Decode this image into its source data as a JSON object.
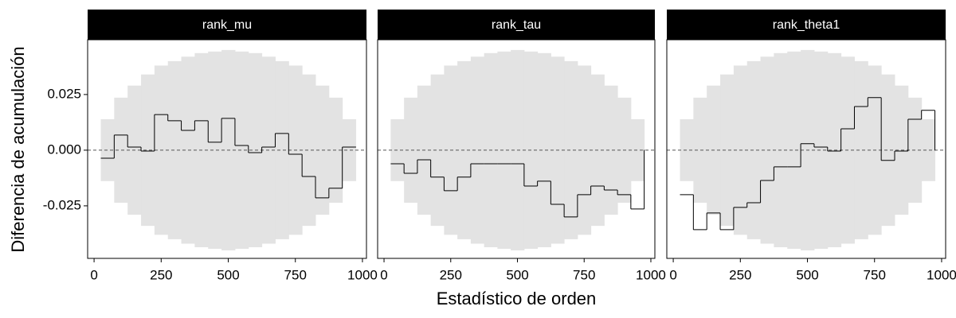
{
  "chart_data": [
    {
      "type": "step",
      "title": "rank_mu",
      "ylabel": "Diferencia de acumulación",
      "x": [
        25,
        75,
        125,
        175,
        225,
        275,
        325,
        375,
        425,
        475,
        525,
        575,
        625,
        675,
        725,
        775,
        825,
        875,
        925,
        975
      ],
      "values": [
        -0.0036,
        0.0068,
        0.0014,
        -0.0004,
        0.016,
        0.0132,
        0.0089,
        0.0132,
        0.0036,
        0.0143,
        0.0021,
        -0.0011,
        0.0014,
        0.0075,
        -0.0018,
        -0.0118,
        -0.0214,
        -0.0171,
        0.0014,
        0.0014
      ],
      "band_upper": [
        0.0139,
        0.0236,
        0.029,
        0.034,
        0.038,
        0.04,
        0.042,
        0.0436,
        0.0443,
        0.045,
        0.0443,
        0.0436,
        0.042,
        0.04,
        0.038,
        0.034,
        0.029,
        0.0236,
        0.0139
      ],
      "band_lower": [
        -0.0139,
        -0.0236,
        -0.029,
        -0.034,
        -0.038,
        -0.04,
        -0.042,
        -0.0436,
        -0.0443,
        -0.045,
        -0.0443,
        -0.0436,
        -0.042,
        -0.04,
        -0.038,
        -0.034,
        -0.029,
        -0.0236,
        -0.0139
      ],
      "hline": 0,
      "color": "#000000",
      "band_color": "#e3e3e3",
      "xlim": [
        -24,
        1015
      ],
      "xticks": [
        0,
        250,
        500,
        750,
        1000
      ],
      "ylim": [
        -0.0486,
        0.0496
      ],
      "yticks": [
        {
          "value": -0.025,
          "label": "-0.025"
        },
        {
          "value": 0,
          "label": "0.000"
        },
        {
          "value": 0.025,
          "label": "0.025"
        }
      ]
    },
    {
      "type": "step",
      "title": "rank_tau",
      "xlabel": "Estadístico de orden",
      "x": [
        25,
        75,
        125,
        175,
        225,
        275,
        325,
        375,
        425,
        475,
        525,
        575,
        625,
        675,
        725,
        775,
        825,
        875,
        925,
        975
      ],
      "values": [
        -0.0061,
        -0.0104,
        -0.0043,
        -0.0121,
        -0.0182,
        -0.0121,
        -0.0061,
        -0.0061,
        -0.0061,
        -0.0061,
        -0.0161,
        -0.0139,
        -0.0243,
        -0.03,
        -0.02,
        -0.0161,
        -0.0179,
        -0.02,
        -0.0264,
        0
      ],
      "band_upper": [
        0.0139,
        0.0236,
        0.029,
        0.034,
        0.038,
        0.04,
        0.042,
        0.0436,
        0.0443,
        0.045,
        0.0443,
        0.0436,
        0.042,
        0.04,
        0.038,
        0.034,
        0.029,
        0.0236,
        0.0139
      ],
      "band_lower": [
        -0.0139,
        -0.0236,
        -0.029,
        -0.034,
        -0.038,
        -0.04,
        -0.042,
        -0.0436,
        -0.0443,
        -0.045,
        -0.0443,
        -0.0436,
        -0.042,
        -0.04,
        -0.038,
        -0.034,
        -0.029,
        -0.0236,
        -0.0139
      ],
      "hline": 0,
      "color": "#000000",
      "band_color": "#e3e3e3",
      "xlim": [
        -24,
        1015
      ],
      "xticks": [
        0,
        250,
        500,
        750,
        1000
      ],
      "ylim": [
        -0.0486,
        0.0496
      ]
    },
    {
      "type": "step",
      "title": "rank_theta1",
      "x": [
        25,
        75,
        125,
        175,
        225,
        275,
        325,
        375,
        425,
        475,
        525,
        575,
        625,
        675,
        725,
        775,
        825,
        875,
        925,
        975
      ],
      "values": [
        -0.02,
        -0.0357,
        -0.0282,
        -0.0357,
        -0.0257,
        -0.0236,
        -0.0136,
        -0.0075,
        -0.0075,
        0.0029,
        0.0014,
        -0.0004,
        0.0096,
        0.0196,
        0.0236,
        -0.0046,
        -0.0004,
        0.0139,
        0.0179,
        0
      ],
      "band_upper": [
        0.0139,
        0.0236,
        0.029,
        0.034,
        0.038,
        0.04,
        0.042,
        0.0436,
        0.0443,
        0.045,
        0.0443,
        0.0436,
        0.042,
        0.04,
        0.038,
        0.034,
        0.029,
        0.0236,
        0.0139
      ],
      "band_lower": [
        -0.0139,
        -0.0236,
        -0.029,
        -0.034,
        -0.038,
        -0.04,
        -0.042,
        -0.0436,
        -0.0443,
        -0.045,
        -0.0443,
        -0.0436,
        -0.042,
        -0.04,
        -0.038,
        -0.034,
        -0.029,
        -0.0236,
        -0.0139
      ],
      "hline": 0,
      "color": "#000000",
      "band_color": "#e3e3e3",
      "xlim": [
        -24,
        1015
      ],
      "xticks": [
        0,
        250,
        500,
        750,
        1000
      ],
      "ylim": [
        -0.0486,
        0.0496
      ]
    }
  ]
}
